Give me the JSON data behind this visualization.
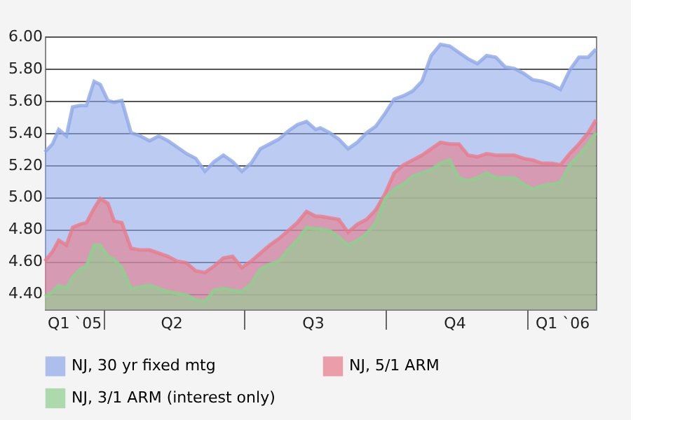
{
  "chart_data": {
    "type": "area",
    "x": [
      "2005-02-22",
      "2005-02-27",
      "2005-03-03",
      "2005-03-08",
      "2005-03-12",
      "2005-03-17",
      "2005-03-21",
      "2005-03-26",
      "2005-03-30",
      "2005-04-04",
      "2005-04-08",
      "2005-04-13",
      "2005-04-19",
      "2005-04-25",
      "2005-05-01",
      "2005-05-07",
      "2005-05-13",
      "2005-05-19",
      "2005-05-25",
      "2005-05-31",
      "2005-06-06",
      "2005-06-12",
      "2005-06-18",
      "2005-06-24",
      "2005-06-30",
      "2005-07-06",
      "2005-07-12",
      "2005-07-18",
      "2005-07-24",
      "2005-07-30",
      "2005-08-05",
      "2005-08-11",
      "2005-08-17",
      "2005-08-20",
      "2005-08-26",
      "2005-09-01",
      "2005-09-07",
      "2005-09-13",
      "2005-09-19",
      "2005-09-25",
      "2005-10-01",
      "2005-10-07",
      "2005-10-13",
      "2005-10-19",
      "2005-10-25",
      "2005-10-31",
      "2005-11-06",
      "2005-11-12",
      "2005-11-18",
      "2005-11-24",
      "2005-11-30",
      "2005-12-06",
      "2005-12-12",
      "2005-12-18",
      "2005-12-24",
      "2005-12-30",
      "2006-01-05",
      "2006-01-11",
      "2006-01-17",
      "2006-01-23",
      "2006-01-29",
      "2006-02-04",
      "2006-02-10",
      "2006-02-15"
    ],
    "series": [
      {
        "name": "NJ, 30 yr fixed mtg",
        "color": "#8fa8e8",
        "values": [
          5.28,
          5.33,
          5.42,
          5.38,
          5.56,
          5.57,
          5.57,
          5.72,
          5.7,
          5.6,
          5.59,
          5.6,
          5.4,
          5.38,
          5.35,
          5.38,
          5.35,
          5.31,
          5.27,
          5.24,
          5.16,
          5.22,
          5.26,
          5.22,
          5.16,
          5.21,
          5.3,
          5.33,
          5.36,
          5.41,
          5.45,
          5.47,
          5.42,
          5.43,
          5.4,
          5.36,
          5.3,
          5.34,
          5.4,
          5.44,
          5.52,
          5.61,
          5.63,
          5.66,
          5.72,
          5.88,
          5.95,
          5.94,
          5.9,
          5.86,
          5.83,
          5.88,
          5.87,
          5.81,
          5.8,
          5.77,
          5.73,
          5.72,
          5.7,
          5.67,
          5.79,
          5.87,
          5.87,
          5.92
        ]
      },
      {
        "name": "NJ, 5/1 ARM",
        "color": "#e87a8a",
        "values": [
          4.6,
          4.66,
          4.73,
          4.7,
          4.81,
          4.83,
          4.84,
          4.93,
          4.99,
          4.96,
          4.85,
          4.84,
          4.68,
          4.67,
          4.67,
          4.65,
          4.63,
          4.6,
          4.59,
          4.54,
          4.53,
          4.57,
          4.62,
          4.63,
          4.56,
          4.6,
          4.65,
          4.7,
          4.74,
          4.79,
          4.84,
          4.91,
          4.88,
          4.88,
          4.87,
          4.86,
          4.78,
          4.83,
          4.86,
          4.92,
          5.02,
          5.15,
          5.2,
          5.23,
          5.26,
          5.3,
          5.34,
          5.33,
          5.33,
          5.26,
          5.25,
          5.27,
          5.26,
          5.26,
          5.26,
          5.24,
          5.23,
          5.21,
          5.21,
          5.2,
          5.27,
          5.33,
          5.4,
          5.48
        ]
      },
      {
        "name": "NJ, 3/1 ARM (interest only)",
        "color": "#8fd08f",
        "values": [
          4.38,
          4.41,
          4.45,
          4.43,
          4.5,
          4.55,
          4.57,
          4.7,
          4.7,
          4.63,
          4.61,
          4.56,
          4.43,
          4.44,
          4.45,
          4.43,
          4.41,
          4.4,
          4.39,
          4.36,
          4.35,
          4.42,
          4.43,
          4.42,
          4.41,
          4.46,
          4.55,
          4.58,
          4.6,
          4.67,
          4.73,
          4.81,
          4.8,
          4.8,
          4.79,
          4.75,
          4.7,
          4.73,
          4.77,
          4.84,
          4.99,
          5.05,
          5.08,
          5.13,
          5.15,
          5.17,
          5.21,
          5.23,
          5.12,
          5.1,
          5.12,
          5.15,
          5.12,
          5.12,
          5.12,
          5.08,
          5.05,
          5.07,
          5.08,
          5.09,
          5.2,
          5.26,
          5.33,
          5.4
        ]
      }
    ],
    "xlim": [
      "2005-02-22",
      "2006-02-15"
    ],
    "xticks": [
      {
        "value": "2005-03-13",
        "label": "Q1 `05"
      },
      {
        "value": "2005-04-01",
        "label": null
      },
      {
        "value": "2005-05-15",
        "label": "Q2"
      },
      {
        "value": "2005-07-01",
        "label": null
      },
      {
        "value": "2005-08-15",
        "label": "Q3"
      },
      {
        "value": "2005-10-01",
        "label": null
      },
      {
        "value": "2005-11-15",
        "label": "Q4"
      },
      {
        "value": "2006-01-01",
        "label": null
      },
      {
        "value": "2006-01-24",
        "label": "Q1 `06"
      }
    ],
    "ylim": [
      4.3,
      6.0
    ],
    "yticks": [
      {
        "value": 4.4,
        "label": "4.40"
      },
      {
        "value": 4.6,
        "label": "4.60"
      },
      {
        "value": 4.8,
        "label": "4.80"
      },
      {
        "value": 5.0,
        "label": "5.00"
      },
      {
        "value": 5.2,
        "label": "5.20"
      },
      {
        "value": 5.4,
        "label": "5.40"
      },
      {
        "value": 5.6,
        "label": "5.60"
      },
      {
        "value": 5.8,
        "label": "5.80"
      },
      {
        "value": 6.0,
        "label": "6.00"
      }
    ],
    "grid": "y",
    "legend": "bottom"
  }
}
